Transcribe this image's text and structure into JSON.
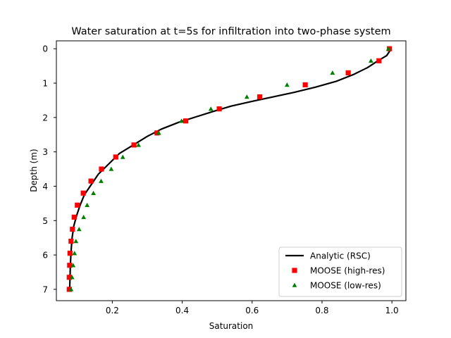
{
  "chart_data": {
    "type": "scatter",
    "title": "Water saturation at t=5s for infiltration into two-phase system",
    "xlabel": "Saturation",
    "ylabel": "Depth (m)",
    "xlim": [
      0.04,
      1.04
    ],
    "ylim": [
      7.33,
      -0.23
    ],
    "y_inverted": true,
    "xticks": [
      0.2,
      0.4,
      0.6,
      0.8,
      1.0
    ],
    "xtick_labels": [
      "0.2",
      "0.4",
      "0.6",
      "0.8",
      "1.0"
    ],
    "yticks": [
      0,
      1,
      2,
      3,
      4,
      5,
      6,
      7
    ],
    "ytick_labels": [
      "0",
      "1",
      "2",
      "3",
      "4",
      "5",
      "6",
      "7"
    ],
    "grid": false,
    "legend_position": "lower-right",
    "series": [
      {
        "name": "Analytic (RSC)",
        "style": "line",
        "color": "#000000",
        "x": [
          0.998,
          0.985,
          0.96,
          0.93,
          0.89,
          0.84,
          0.78,
          0.72,
          0.66,
          0.6,
          0.54,
          0.49,
          0.44,
          0.39,
          0.34,
          0.3,
          0.26,
          0.22,
          0.19,
          0.16,
          0.14,
          0.12,
          0.108,
          0.098,
          0.09,
          0.085,
          0.082,
          0.08,
          0.079,
          0.078
        ],
        "y": [
          0.0,
          0.2,
          0.35,
          0.55,
          0.75,
          0.95,
          1.12,
          1.27,
          1.4,
          1.53,
          1.67,
          1.82,
          1.98,
          2.14,
          2.34,
          2.55,
          2.8,
          3.05,
          3.35,
          3.65,
          3.95,
          4.25,
          4.55,
          4.85,
          5.15,
          5.5,
          5.9,
          6.3,
          6.7,
          7.0
        ]
      },
      {
        "name": "MOOSE (high-res)",
        "style": "square",
        "color": "#ff0000",
        "x": [
          0.993,
          0.963,
          0.875,
          0.752,
          0.622,
          0.506,
          0.41,
          0.328,
          0.262,
          0.21,
          0.169,
          0.139,
          0.117,
          0.1,
          0.091,
          0.086,
          0.082,
          0.079,
          0.078,
          0.077,
          0.077
        ],
        "y": [
          0.0,
          0.35,
          0.7,
          1.05,
          1.4,
          1.75,
          2.1,
          2.45,
          2.8,
          3.15,
          3.5,
          3.85,
          4.2,
          4.55,
          4.9,
          5.25,
          5.6,
          5.95,
          6.3,
          6.65,
          7.0
        ]
      },
      {
        "name": "MOOSE (low-res)",
        "style": "triangle",
        "color": "#008000",
        "x": [
          0.99,
          0.94,
          0.83,
          0.7,
          0.585,
          0.482,
          0.398,
          0.333,
          0.275,
          0.23,
          0.197,
          0.168,
          0.146,
          0.128,
          0.118,
          0.105,
          0.096,
          0.092,
          0.088,
          0.085,
          0.082
        ],
        "y": [
          0.0,
          0.35,
          0.7,
          1.05,
          1.4,
          1.75,
          2.1,
          2.45,
          2.8,
          3.15,
          3.5,
          3.85,
          4.2,
          4.55,
          4.9,
          5.25,
          5.6,
          5.95,
          6.3,
          6.65,
          7.0
        ]
      }
    ]
  }
}
